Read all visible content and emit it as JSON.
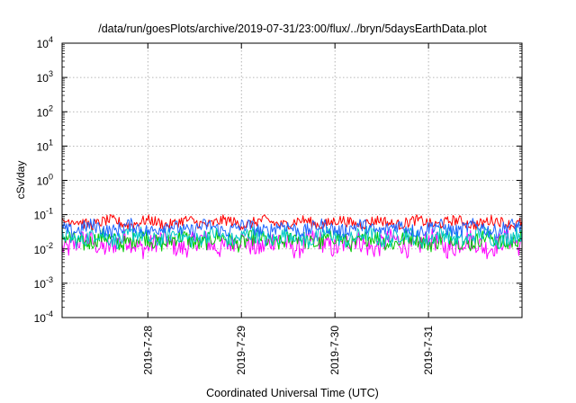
{
  "chart_data": {
    "type": "line",
    "title": "/data/run/goesPlots/archive/2019-07-31/23:00/flux/../bryn/5daysEarthData.plot",
    "xlabel": "Coordinated Universal Time (UTC)",
    "ylabel": "cSv/day",
    "xlim": [
      "2019-07-27T02:00",
      "2019-07-31T23:59"
    ],
    "ylim": [
      0.0001,
      10000
    ],
    "yscale": "log",
    "x_ticks": [
      "2019-7-28",
      "2019-7-29",
      "2019-7-30",
      "2019-7-31"
    ],
    "y_ticks": [
      {
        "base": "10",
        "exp": "-4"
      },
      {
        "base": "10",
        "exp": "-3"
      },
      {
        "base": "10",
        "exp": "-2"
      },
      {
        "base": "10",
        "exp": "-1"
      },
      {
        "base": "10",
        "exp": "0"
      },
      {
        "base": "10",
        "exp": "1"
      },
      {
        "base": "10",
        "exp": "2"
      },
      {
        "base": "10",
        "exp": "3"
      },
      {
        "base": "10",
        "exp": "4"
      }
    ],
    "grid": true,
    "series": [
      {
        "color": "#ff0000",
        "typical_range": [
          0.035,
          0.1
        ]
      },
      {
        "color": "#00c800",
        "typical_range": [
          0.008,
          0.04
        ]
      },
      {
        "color": "#00c8c8",
        "typical_range": [
          0.01,
          0.05
        ]
      },
      {
        "color": "#1e64ff",
        "typical_range": [
          0.02,
          0.08
        ]
      },
      {
        "color": "#ff00ff",
        "typical_range": [
          0.005,
          0.04
        ]
      }
    ]
  }
}
